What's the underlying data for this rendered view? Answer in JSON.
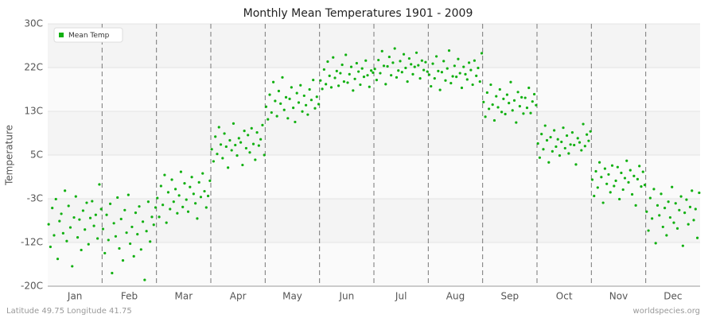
{
  "chart_data": {
    "type": "scatter",
    "title": "Monthly Mean Temperatures 1901 - 2009",
    "ylabel": "Temperature",
    "footer_left": "Latitude 49.75 Longitude 41.75",
    "footer_right": "worldspecies.org",
    "categories": [
      "Jan",
      "Feb",
      "Mar",
      "Apr",
      "May",
      "Jun",
      "Jul",
      "Aug",
      "Sep",
      "Oct",
      "Nov",
      "Dec"
    ],
    "ylim": [
      -20,
      30
    ],
    "yticks": [
      {
        "value": -20,
        "label": "-20C"
      },
      {
        "value": -11.67,
        "label": "-12C"
      },
      {
        "value": -3.33,
        "label": "-3C"
      },
      {
        "value": 5,
        "label": "5C"
      },
      {
        "value": 13.33,
        "label": "13C"
      },
      {
        "value": 21.67,
        "label": "22C"
      },
      {
        "value": 30,
        "label": "30C"
      }
    ],
    "grid": true,
    "legend": "top-left",
    "series": [
      {
        "name": "Mean Temp",
        "color": "#11b011",
        "values": [
          [
            -8.2,
            -12.5,
            -5.1,
            -10.3,
            -3.4,
            -14.8,
            -7.6,
            -6.2,
            -9.9,
            -1.8,
            -11.4,
            -4.7,
            -8.8,
            -16.2,
            -6.9,
            -2.9,
            -10.7,
            -7.3,
            -13.1,
            -5.6,
            -9.2,
            -4.1,
            -12.0,
            -7.0,
            -3.8,
            -8.5,
            -6.4,
            -10.9,
            -0.6,
            -5.3
          ],
          [
            -9.1,
            -13.7,
            -6.4,
            -11.2,
            -4.3,
            -17.5,
            -8.0,
            -10.5,
            -3.1,
            -12.8,
            -7.2,
            -15.1,
            -5.5,
            -9.8,
            -2.6,
            -11.9,
            -8.7,
            -14.3,
            -6.0,
            -10.1,
            -4.8,
            -13.0,
            -7.7,
            -18.8,
            -9.5,
            -3.9,
            -11.5,
            -6.8,
            -8.3,
            -5.0
          ],
          [
            -3.2,
            -6.8,
            -0.9,
            -4.5,
            1.2,
            -7.9,
            -2.1,
            -5.3,
            0.3,
            -3.9,
            -1.5,
            -6.1,
            -2.7,
            1.8,
            -4.9,
            -0.4,
            -3.5,
            -5.8,
            -1.1,
            0.8,
            -2.4,
            -4.2,
            -7.1,
            -0.2,
            -3.0,
            1.5,
            -1.9,
            -5.0,
            -2.8,
            0.1
          ],
          [
            6.1,
            3.8,
            8.5,
            5.2,
            10.3,
            7.0,
            4.4,
            9.1,
            6.6,
            2.6,
            7.8,
            5.9,
            11.0,
            6.9,
            4.9,
            8.2,
            7.4,
            3.1,
            9.6,
            6.3,
            8.8,
            5.5,
            10.1,
            7.1,
            4.1,
            9.3,
            6.8,
            8.0,
            10.7,
            5.0
          ],
          [
            14.2,
            11.8,
            16.5,
            13.1,
            18.9,
            15.3,
            12.4,
            17.2,
            14.8,
            19.8,
            13.6,
            16.0,
            12.0,
            15.7,
            17.9,
            14.0,
            11.3,
            16.8,
            15.0,
            18.3,
            13.3,
            16.3,
            14.5,
            12.7,
            17.5,
            15.5,
            19.3,
            13.9,
            16.1,
            14.7
          ],
          [
            19.2,
            17.6,
            21.3,
            18.5,
            22.8,
            20.1,
            17.9,
            23.6,
            19.7,
            21.0,
            18.2,
            20.6,
            22.2,
            19.0,
            24.1,
            18.8,
            20.4,
            21.8,
            17.3,
            19.5,
            22.5,
            20.9,
            18.4,
            21.5,
            19.9,
            23.0,
            20.2,
            18.0,
            21.1,
            20.7
          ],
          [
            21.4,
            19.3,
            23.1,
            20.6,
            24.8,
            22.0,
            18.5,
            21.9,
            23.7,
            20.2,
            22.6,
            25.3,
            19.8,
            21.1,
            22.9,
            20.8,
            24.2,
            21.6,
            19.0,
            23.4,
            22.3,
            20.4,
            21.8,
            24.5,
            22.1,
            19.6,
            23.0,
            21.2,
            22.7,
            20.9
          ],
          [
            20.3,
            18.1,
            22.4,
            19.6,
            23.8,
            21.0,
            17.4,
            20.8,
            22.9,
            19.2,
            21.5,
            24.9,
            18.7,
            20.0,
            22.0,
            19.9,
            23.3,
            20.6,
            17.8,
            21.8,
            20.4,
            19.4,
            22.6,
            21.2,
            18.4,
            23.0,
            20.1,
            21.6,
            19.0,
            24.4
          ],
          [
            15.1,
            12.3,
            16.9,
            13.8,
            18.4,
            14.6,
            11.6,
            16.2,
            14.1,
            17.5,
            13.2,
            15.7,
            12.8,
            16.5,
            14.9,
            18.9,
            13.5,
            15.4,
            11.2,
            17.0,
            14.3,
            16.0,
            12.9,
            15.9,
            14.0,
            17.8,
            13.0,
            15.2,
            16.6,
            14.5
          ],
          [
            7.2,
            4.5,
            9.0,
            6.1,
            10.6,
            7.8,
            3.6,
            8.4,
            5.7,
            9.7,
            6.6,
            8.0,
            4.9,
            7.5,
            10.2,
            6.3,
            8.7,
            5.3,
            7.0,
            9.3,
            6.9,
            3.2,
            8.2,
            7.4,
            5.9,
            10.9,
            6.7,
            8.9,
            7.7,
            9.5
          ],
          [
            0.3,
            -2.8,
            1.9,
            -1.2,
            3.6,
            0.8,
            -4.1,
            2.4,
            -0.5,
            1.3,
            -2.1,
            3.0,
            -0.9,
            0.1,
            2.7,
            -3.4,
            1.6,
            -1.6,
            0.6,
            3.9,
            -0.2,
            2.1,
            -2.5,
            1.0,
            -4.6,
            0.4,
            2.9,
            -1.0,
            1.8,
            -0.7
          ],
          [
            -5.8,
            -9.4,
            -3.2,
            -7.1,
            -1.5,
            -11.8,
            -4.6,
            -6.5,
            -2.4,
            -8.7,
            -5.1,
            -10.3,
            -3.9,
            -6.9,
            -1.1,
            -7.9,
            -4.2,
            -9.0,
            -5.5,
            -2.9,
            -12.3,
            -6.0,
            -3.5,
            -8.2,
            -4.9,
            -1.8,
            -7.4,
            -5.3,
            -10.8,
            -2.2
          ]
        ]
      }
    ]
  }
}
